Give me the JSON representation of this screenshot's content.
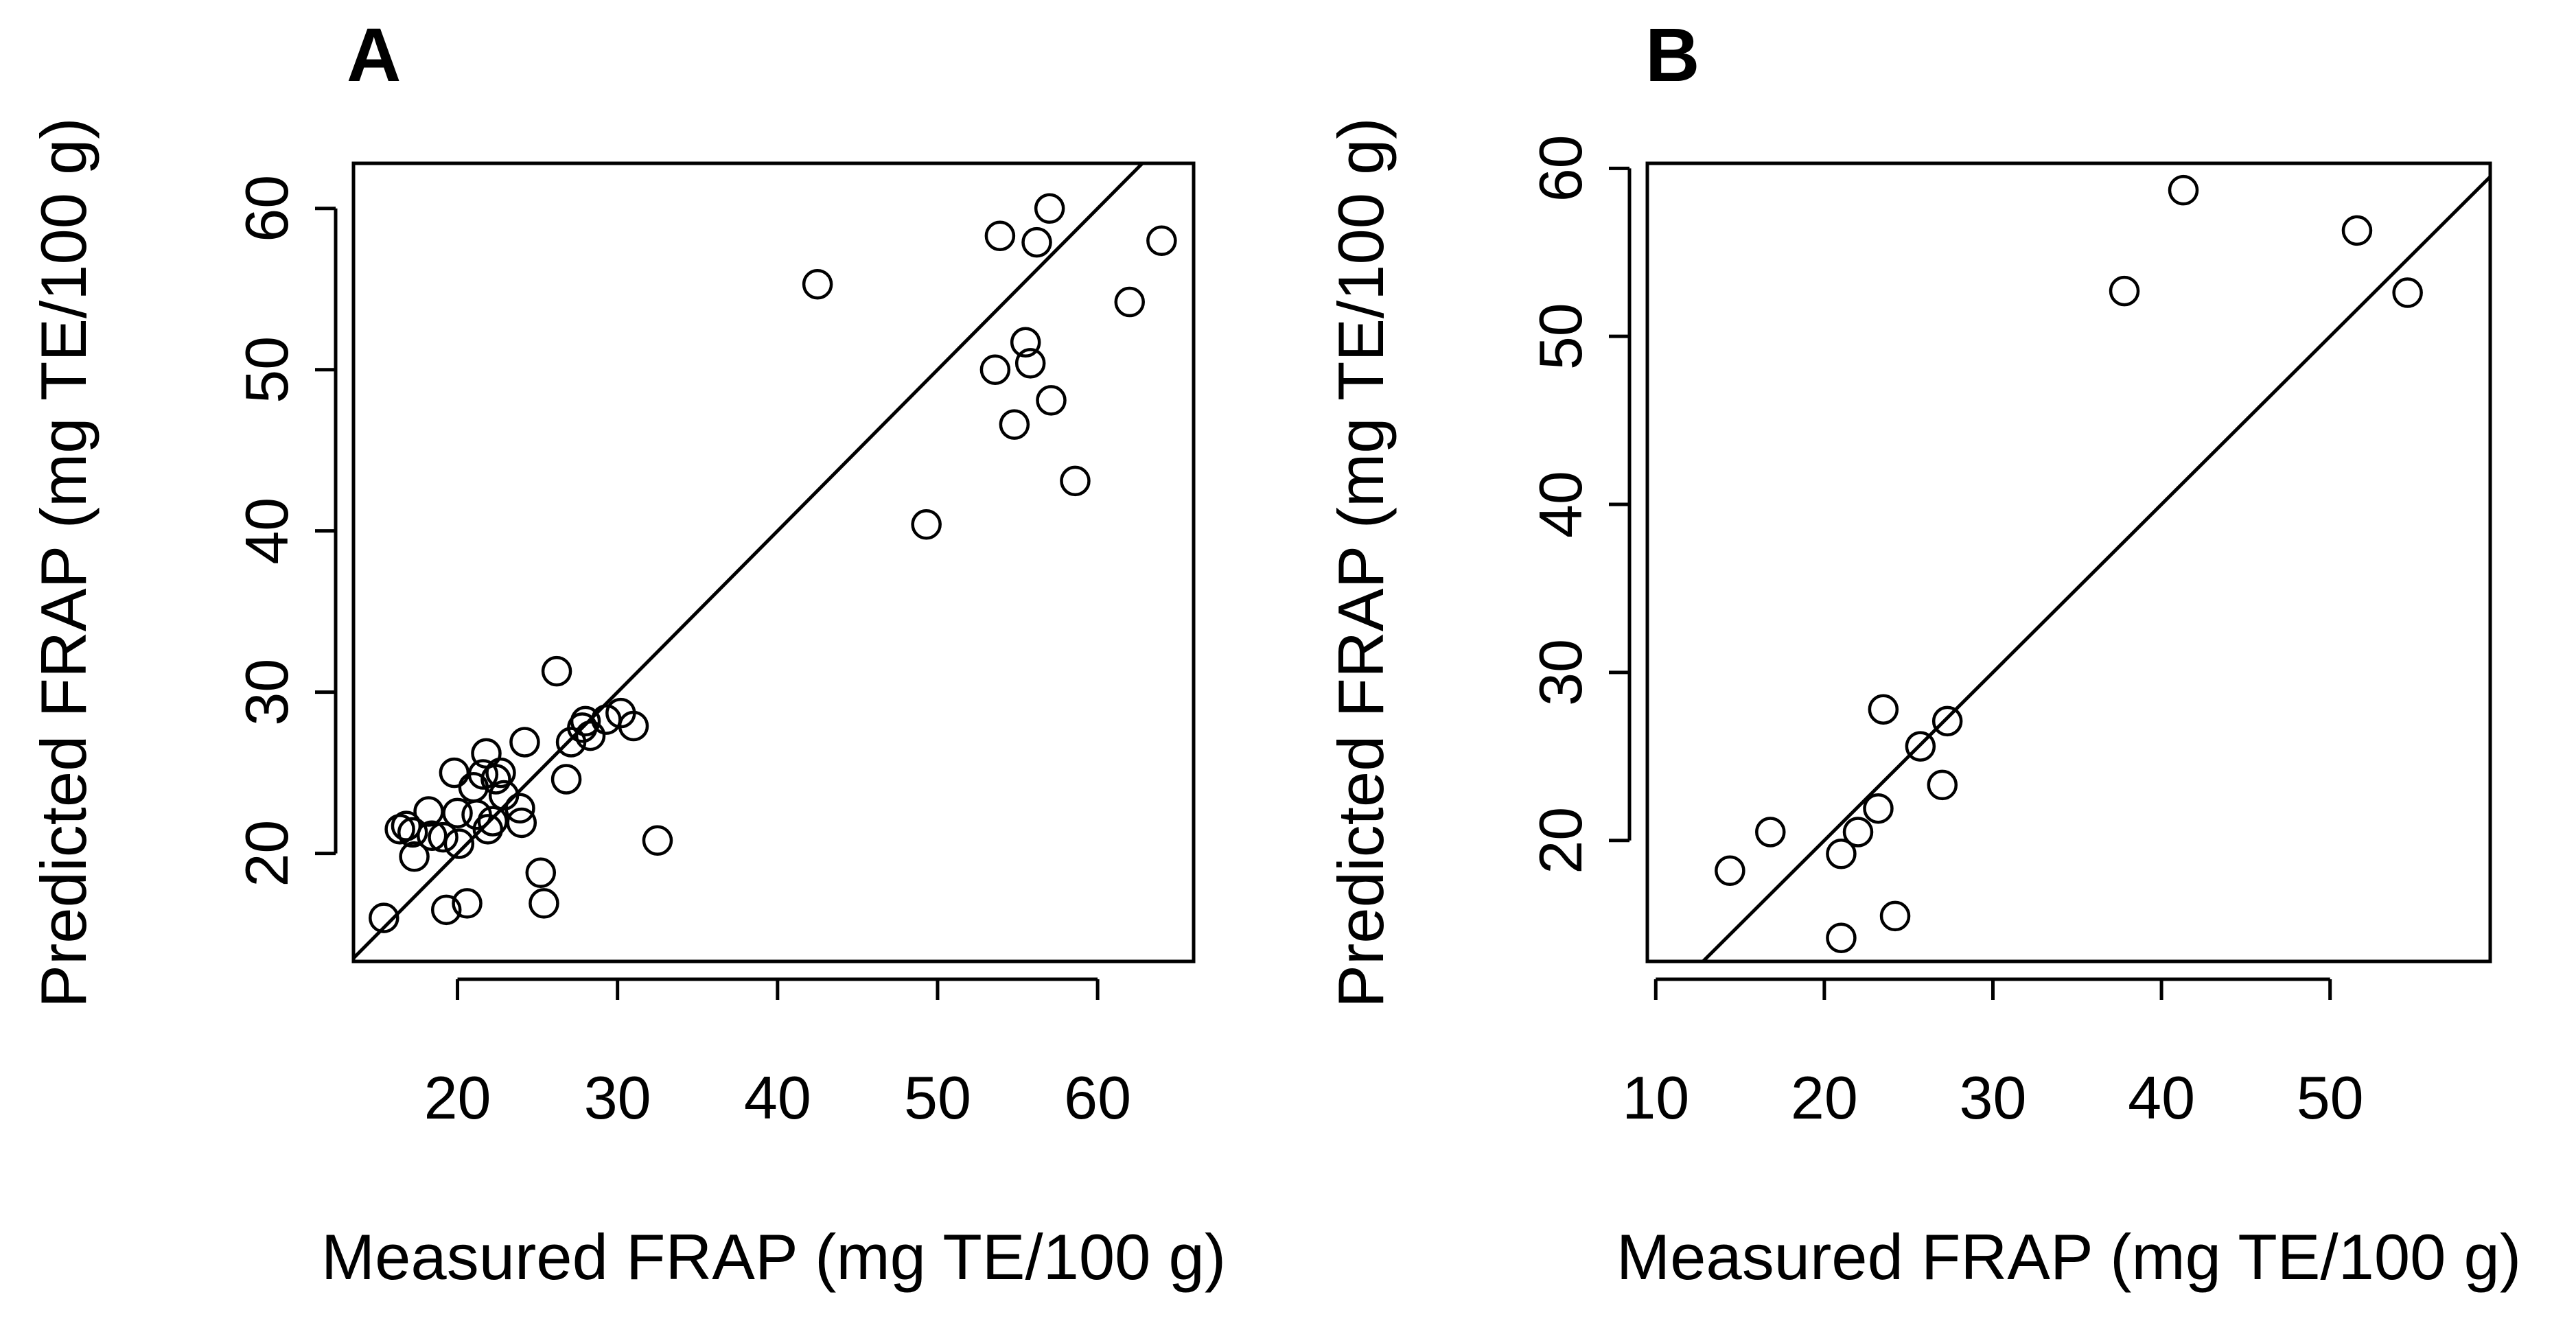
{
  "chart_data": [
    {
      "type": "scatter",
      "panel_label": "A",
      "xlabel": "Measured FRAP (mg TE/100 g)",
      "ylabel": "Predicted FRAP (mg TE/100 g)",
      "xlim": [
        13.5,
        66
      ],
      "ylim": [
        13.3,
        62.8
      ],
      "xticks": [
        20,
        30,
        40,
        50,
        60
      ],
      "yticks": [
        20,
        30,
        40,
        50,
        60
      ],
      "reference_line": "y = x",
      "points": [
        {
          "x": 15.4,
          "y": 16.0
        },
        {
          "x": 16.4,
          "y": 21.5
        },
        {
          "x": 16.8,
          "y": 21.7
        },
        {
          "x": 17.2,
          "y": 21.3
        },
        {
          "x": 17.3,
          "y": 19.8
        },
        {
          "x": 18.2,
          "y": 22.6
        },
        {
          "x": 18.4,
          "y": 21.1
        },
        {
          "x": 19.1,
          "y": 21.0
        },
        {
          "x": 19.3,
          "y": 16.5
        },
        {
          "x": 19.8,
          "y": 25.0
        },
        {
          "x": 20.0,
          "y": 22.5
        },
        {
          "x": 20.1,
          "y": 20.6
        },
        {
          "x": 20.6,
          "y": 16.9
        },
        {
          "x": 21.0,
          "y": 24.1
        },
        {
          "x": 21.2,
          "y": 22.4
        },
        {
          "x": 21.6,
          "y": 24.9
        },
        {
          "x": 21.8,
          "y": 26.2
        },
        {
          "x": 21.9,
          "y": 21.5
        },
        {
          "x": 22.2,
          "y": 22.0
        },
        {
          "x": 22.4,
          "y": 24.6
        },
        {
          "x": 22.7,
          "y": 25.0
        },
        {
          "x": 22.9,
          "y": 23.6
        },
        {
          "x": 23.9,
          "y": 22.8
        },
        {
          "x": 24.0,
          "y": 21.9
        },
        {
          "x": 24.2,
          "y": 26.9
        },
        {
          "x": 25.2,
          "y": 18.8
        },
        {
          "x": 25.4,
          "y": 16.9
        },
        {
          "x": 26.2,
          "y": 31.3
        },
        {
          "x": 26.8,
          "y": 24.6
        },
        {
          "x": 27.1,
          "y": 26.9
        },
        {
          "x": 27.8,
          "y": 27.8
        },
        {
          "x": 28.0,
          "y": 28.2
        },
        {
          "x": 28.3,
          "y": 27.3
        },
        {
          "x": 29.3,
          "y": 28.3
        },
        {
          "x": 30.2,
          "y": 28.7
        },
        {
          "x": 31.0,
          "y": 27.9
        },
        {
          "x": 32.5,
          "y": 20.8
        },
        {
          "x": 42.5,
          "y": 55.3
        },
        {
          "x": 49.3,
          "y": 40.4
        },
        {
          "x": 53.6,
          "y": 50.0
        },
        {
          "x": 53.9,
          "y": 58.3
        },
        {
          "x": 54.8,
          "y": 46.6
        },
        {
          "x": 55.5,
          "y": 51.7
        },
        {
          "x": 55.8,
          "y": 50.4
        },
        {
          "x": 56.2,
          "y": 57.9
        },
        {
          "x": 57.1,
          "y": 48.1
        },
        {
          "x": 57.0,
          "y": 60.0
        },
        {
          "x": 58.6,
          "y": 43.1
        },
        {
          "x": 62.0,
          "y": 54.2
        },
        {
          "x": 64.0,
          "y": 58.0
        }
      ]
    },
    {
      "type": "scatter",
      "panel_label": "B",
      "xlabel": "Measured FRAP (mg TE/100 g)",
      "ylabel": "Predicted FRAP (mg TE/100 g)",
      "xlim": [
        9.5,
        59.5
      ],
      "ylim": [
        12.8,
        60.3
      ],
      "xticks": [
        10,
        20,
        30,
        40,
        50
      ],
      "yticks": [
        20,
        30,
        40,
        50,
        60
      ],
      "reference_line": "y = x",
      "points": [
        {
          "x": 14.4,
          "y": 18.2
        },
        {
          "x": 16.8,
          "y": 20.5
        },
        {
          "x": 21.0,
          "y": 14.2
        },
        {
          "x": 21.0,
          "y": 19.2
        },
        {
          "x": 22.0,
          "y": 20.5
        },
        {
          "x": 23.2,
          "y": 21.9
        },
        {
          "x": 23.5,
          "y": 27.8
        },
        {
          "x": 24.2,
          "y": 15.5
        },
        {
          "x": 25.7,
          "y": 25.6
        },
        {
          "x": 27.0,
          "y": 23.3
        },
        {
          "x": 27.3,
          "y": 27.1
        },
        {
          "x": 37.8,
          "y": 52.7
        },
        {
          "x": 41.3,
          "y": 58.7
        },
        {
          "x": 51.6,
          "y": 56.3
        },
        {
          "x": 54.6,
          "y": 52.6
        }
      ]
    }
  ]
}
